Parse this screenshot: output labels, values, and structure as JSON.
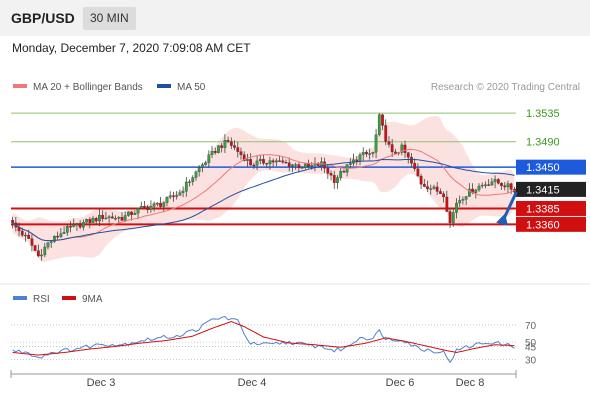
{
  "header": {
    "symbol": "GBP/USD",
    "timeframe": "30 MIN",
    "datetime": "Monday, December 7, 2020 7:09:08 AM CET"
  },
  "colors": {
    "up": "#35a040",
    "down": "#d01010",
    "ma20": "#f07878",
    "bollinger": "#fcdcdc",
    "ma50": "#2050a0",
    "resistance": "#8dc36e",
    "resistance_text": "#3a9a1e",
    "pivot": "#1e5adc",
    "support": "#d01010",
    "current": "#222222",
    "rsi": "#5080d0",
    "rsi_ma": "#d01010",
    "arrow": "#2060b0"
  },
  "chart_data": [
    {
      "type": "candlestick",
      "legend": [
        {
          "name": "MA 20 + Bollinger Bands",
          "color": "#f07878"
        },
        {
          "name": "MA 50",
          "color": "#2050a0"
        }
      ],
      "legend_placement": "top-left",
      "watermark": "Research © 2020 Trading Central",
      "x_ticks": [
        "Dec 3",
        "Dec 4",
        "Dec 6",
        "Dec 8"
      ],
      "ylim": [
        1.3285,
        1.3562
      ],
      "levels": [
        {
          "label": "1.3535",
          "value": 1.3535,
          "kind": "resistance"
        },
        {
          "label": "1.3490",
          "value": 1.349,
          "kind": "resistance"
        },
        {
          "label": "1.3450",
          "value": 1.345,
          "kind": "pivot"
        },
        {
          "label": "1.3415",
          "value": 1.3415,
          "kind": "current"
        },
        {
          "label": "1.3385",
          "value": 1.3385,
          "kind": "support"
        },
        {
          "label": "1.3360",
          "value": 1.336,
          "kind": "support"
        }
      ],
      "close_anchors": [
        [
          0,
          1.336
        ],
        [
          5,
          1.3335
        ],
        [
          8,
          1.331
        ],
        [
          11,
          1.333
        ],
        [
          16,
          1.335
        ],
        [
          22,
          1.3362
        ],
        [
          28,
          1.3372
        ],
        [
          34,
          1.337
        ],
        [
          40,
          1.3385
        ],
        [
          46,
          1.3392
        ],
        [
          52,
          1.341
        ],
        [
          58,
          1.3448
        ],
        [
          64,
          1.3482
        ],
        [
          67,
          1.349
        ],
        [
          70,
          1.3475
        ],
        [
          74,
          1.3455
        ],
        [
          80,
          1.346
        ],
        [
          86,
          1.3455
        ],
        [
          92,
          1.345
        ],
        [
          96,
          1.3455
        ],
        [
          100,
          1.343
        ],
        [
          104,
          1.345
        ],
        [
          108,
          1.3468
        ],
        [
          112,
          1.3472
        ],
        [
          114,
          1.3528
        ],
        [
          116,
          1.3495
        ],
        [
          118,
          1.347
        ],
        [
          121,
          1.348
        ],
        [
          124,
          1.3455
        ],
        [
          127,
          1.3425
        ],
        [
          131,
          1.3415
        ],
        [
          134,
          1.3408
        ],
        [
          136,
          1.3362
        ],
        [
          138,
          1.3395
        ],
        [
          141,
          1.3408
        ],
        [
          145,
          1.342
        ],
        [
          149,
          1.3428
        ],
        [
          153,
          1.3422
        ],
        [
          156,
          1.3414
        ]
      ],
      "projection": {
        "from": 1.3414,
        "to": 1.338
      }
    },
    {
      "type": "line",
      "legend": [
        {
          "name": "RSI",
          "color": "#5080d0"
        },
        {
          "name": "9MA",
          "color": "#d01010"
        }
      ],
      "ylim": [
        20,
        85
      ],
      "y_ticks": [
        70,
        50,
        45,
        30
      ],
      "rsi_anchors": [
        [
          0,
          40
        ],
        [
          5,
          38
        ],
        [
          8,
          32
        ],
        [
          12,
          38
        ],
        [
          16,
          40
        ],
        [
          22,
          44
        ],
        [
          28,
          48
        ],
        [
          34,
          47
        ],
        [
          40,
          52
        ],
        [
          46,
          55
        ],
        [
          52,
          58
        ],
        [
          58,
          66
        ],
        [
          62,
          76
        ],
        [
          66,
          79
        ],
        [
          70,
          74
        ],
        [
          74,
          48
        ],
        [
          80,
          47
        ],
        [
          86,
          50
        ],
        [
          92,
          46
        ],
        [
          96,
          45
        ],
        [
          100,
          40
        ],
        [
          104,
          44
        ],
        [
          108,
          56
        ],
        [
          112,
          54
        ],
        [
          114,
          63
        ],
        [
          116,
          55
        ],
        [
          118,
          52
        ],
        [
          121,
          54
        ],
        [
          124,
          47
        ],
        [
          127,
          42
        ],
        [
          131,
          40
        ],
        [
          134,
          38
        ],
        [
          136,
          28
        ],
        [
          138,
          40
        ],
        [
          141,
          44
        ],
        [
          145,
          48
        ],
        [
          149,
          50
        ],
        [
          153,
          47
        ],
        [
          156,
          45
        ]
      ],
      "ma_anchors": [
        [
          0,
          38
        ],
        [
          8,
          35
        ],
        [
          16,
          38
        ],
        [
          24,
          42
        ],
        [
          32,
          45
        ],
        [
          40,
          49
        ],
        [
          48,
          52
        ],
        [
          56,
          57
        ],
        [
          62,
          66
        ],
        [
          68,
          74
        ],
        [
          72,
          68
        ],
        [
          78,
          56
        ],
        [
          86,
          49
        ],
        [
          94,
          47
        ],
        [
          102,
          44
        ],
        [
          110,
          49
        ],
        [
          116,
          55
        ],
        [
          122,
          51
        ],
        [
          128,
          46
        ],
        [
          134,
          41
        ],
        [
          138,
          38
        ],
        [
          144,
          43
        ],
        [
          150,
          47
        ],
        [
          156,
          46
        ]
      ]
    }
  ]
}
